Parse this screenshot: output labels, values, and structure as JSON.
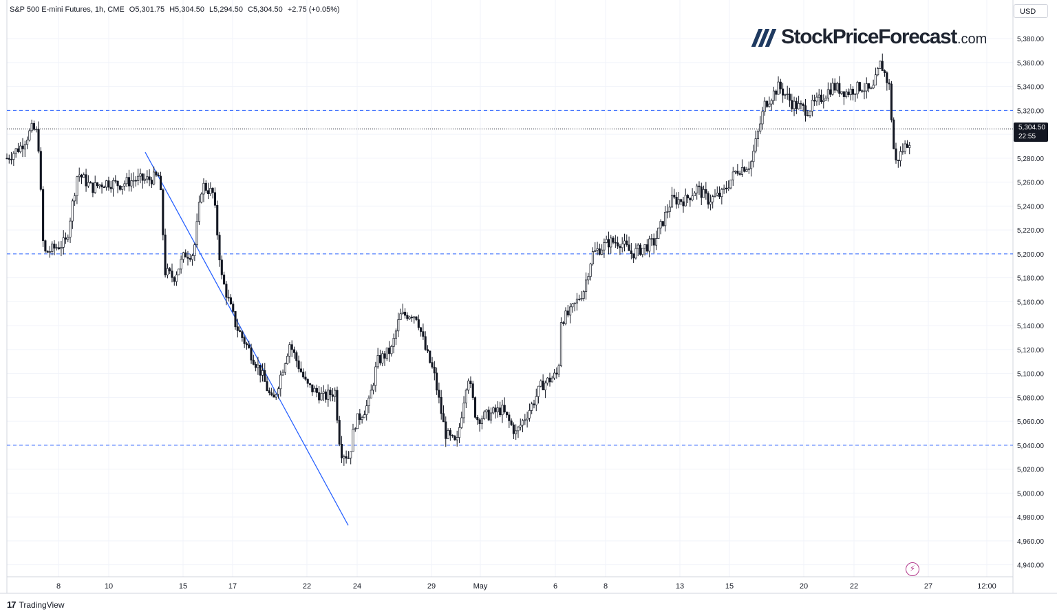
{
  "header": {
    "symbol": "S&P 500 E-mini Futures, 1h, CME",
    "open": "O5,301.75",
    "high": "H5,304.50",
    "low": "L5,294.50",
    "close": "C5,304.50",
    "change": "+2.75 (+0.05%)"
  },
  "currency": "USD",
  "logo": {
    "main": "StockPriceForecast",
    "tld": ".com"
  },
  "last_price": {
    "value": "5,304.50",
    "countdown": "22:55"
  },
  "footer": {
    "brand": "TradingView",
    "brand_icon": "tradingview-logo-icon"
  },
  "colors": {
    "candle": "#131722",
    "levels": "#2962ff",
    "trendline": "#2962ff",
    "grid": "#f0f3fa"
  },
  "chart_data": {
    "type": "candlestick",
    "y_unit": "points",
    "ylim": [
      4930,
      5395
    ],
    "yticks": [
      4940,
      4960,
      4980,
      5000,
      5020,
      5040,
      5060,
      5080,
      5100,
      5120,
      5140,
      5160,
      5180,
      5200,
      5220,
      5240,
      5260,
      5280,
      5300,
      5320,
      5340,
      5360,
      5380
    ],
    "y_tick_labels": [
      "4,940.00",
      "4,960.00",
      "4,980.00",
      "5,000.00",
      "5,020.00",
      "5,040.00",
      "5,060.00",
      "5,080.00",
      "5,100.00",
      "5,120.00",
      "5,140.00",
      "5,160.00",
      "5,180.00",
      "5,200.00",
      "5,220.00",
      "5,240.00",
      "5,260.00",
      "5,280.00",
      "5,300.00",
      "5,320.00",
      "5,340.00",
      "5,360.00",
      "5,380.00"
    ],
    "x_tick_labels": [
      "8",
      "10",
      "15",
      "17",
      "22",
      "24",
      "29",
      "May",
      "6",
      "8",
      "13",
      "15",
      "20",
      "22",
      "27",
      "12:00"
    ],
    "horizontal_levels": [
      5320,
      5200,
      5040
    ],
    "last_close": 5304.5,
    "trendline": {
      "from": [
        "Apr 12",
        5285
      ],
      "to": [
        "Apr 23",
        4973
      ]
    },
    "path_points": [
      [
        0,
        5280
      ],
      [
        10,
        5290
      ],
      [
        18,
        5305
      ],
      [
        22,
        5300
      ],
      [
        26,
        5200
      ],
      [
        34,
        5205
      ],
      [
        42,
        5210
      ],
      [
        50,
        5268
      ],
      [
        60,
        5255
      ],
      [
        70,
        5260
      ],
      [
        80,
        5258
      ],
      [
        90,
        5262
      ],
      [
        100,
        5262
      ],
      [
        108,
        5265
      ],
      [
        112,
        5185
      ],
      [
        118,
        5180
      ],
      [
        126,
        5200
      ],
      [
        132,
        5200
      ],
      [
        138,
        5258
      ],
      [
        146,
        5250
      ],
      [
        152,
        5180
      ],
      [
        162,
        5140
      ],
      [
        172,
        5118
      ],
      [
        180,
        5100
      ],
      [
        188,
        5075
      ],
      [
        200,
        5125
      ],
      [
        212,
        5090
      ],
      [
        224,
        5080
      ],
      [
        232,
        5085
      ],
      [
        236,
        5035
      ],
      [
        242,
        5030
      ],
      [
        246,
        5058
      ],
      [
        256,
        5075
      ],
      [
        262,
        5110
      ],
      [
        272,
        5120
      ],
      [
        278,
        5148
      ],
      [
        286,
        5150
      ],
      [
        290,
        5148
      ],
      [
        296,
        5120
      ],
      [
        302,
        5100
      ],
      [
        310,
        5050
      ],
      [
        318,
        5040
      ],
      [
        326,
        5100
      ],
      [
        332,
        5062
      ],
      [
        340,
        5065
      ],
      [
        350,
        5070
      ],
      [
        360,
        5050
      ],
      [
        372,
        5075
      ],
      [
        378,
        5090
      ],
      [
        390,
        5100
      ],
      [
        392,
        5145
      ],
      [
        398,
        5150
      ],
      [
        408,
        5170
      ],
      [
        414,
        5200
      ],
      [
        426,
        5210
      ],
      [
        434,
        5210
      ],
      [
        442,
        5200
      ],
      [
        450,
        5205
      ],
      [
        458,
        5210
      ],
      [
        470,
        5245
      ],
      [
        480,
        5245
      ],
      [
        488,
        5255
      ],
      [
        496,
        5245
      ],
      [
        506,
        5250
      ],
      [
        516,
        5270
      ],
      [
        526,
        5275
      ],
      [
        536,
        5325
      ],
      [
        546,
        5340
      ],
      [
        556,
        5325
      ],
      [
        566,
        5320
      ],
      [
        574,
        5328
      ],
      [
        584,
        5340
      ],
      [
        594,
        5335
      ],
      [
        604,
        5340
      ],
      [
        612,
        5335
      ],
      [
        618,
        5360
      ],
      [
        624,
        5340
      ],
      [
        628,
        5275
      ],
      [
        634,
        5288
      ],
      [
        640,
        5298
      ]
    ]
  }
}
